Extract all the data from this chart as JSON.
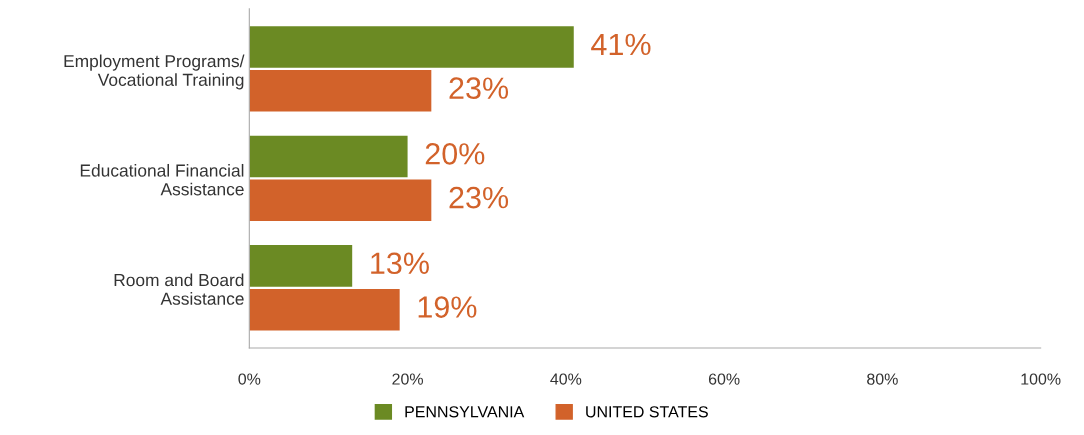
{
  "chart_data": {
    "type": "bar",
    "orientation": "horizontal",
    "categories": [
      "Employment Programs/\nVocational Training",
      "Educational Financial\nAssistance",
      "Room and Board\nAssistance"
    ],
    "series": [
      {
        "name": "PENNSYLVANIA",
        "color": "#6b8a23",
        "values": [
          41,
          20,
          13
        ],
        "value_labels": [
          "41%",
          "20%",
          "13%"
        ]
      },
      {
        "name": "UNITED STATES",
        "color": "#d2622a",
        "values": [
          23,
          23,
          19
        ],
        "value_labels": [
          "23%",
          "23%",
          "19%"
        ]
      }
    ],
    "xlim": [
      0,
      100
    ],
    "xticks": [
      {
        "value": 0,
        "label": "0%"
      },
      {
        "value": 20,
        "label": "20%"
      },
      {
        "value": 40,
        "label": "40%"
      },
      {
        "value": 60,
        "label": "60%"
      },
      {
        "value": 80,
        "label": "80%"
      },
      {
        "value": 100,
        "label": "100%"
      }
    ],
    "grid": false,
    "legend": "bottom"
  }
}
